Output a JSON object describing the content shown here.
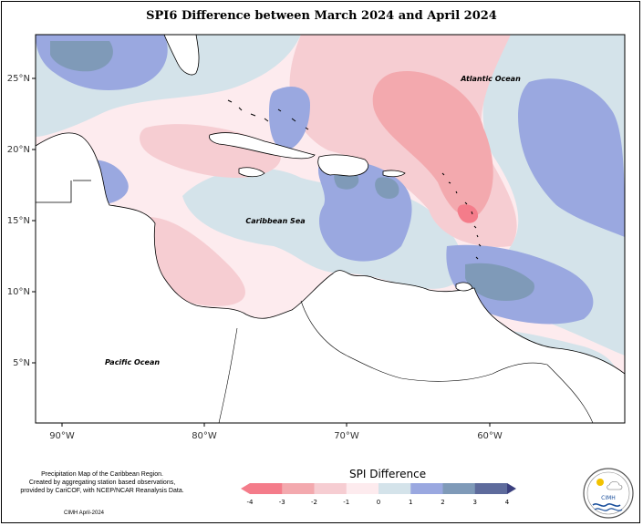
{
  "title": "SPI6 Difference between March 2024 and April 2024",
  "map": {
    "lat_ticks": [
      "25°N",
      "20°N",
      "15°N",
      "10°N",
      "5°N"
    ],
    "lon_ticks": [
      "90°W",
      "80°W",
      "70°W",
      "60°W"
    ],
    "labels": {
      "atlantic": "Atlantic Ocean",
      "caribbean": "Caribbean Sea",
      "pacific": "Pacific Ocean"
    }
  },
  "legend": {
    "title": "SPI Difference",
    "ticks": [
      "-4",
      "-3",
      "-2",
      "-1",
      "0",
      "1",
      "2",
      "3",
      "4"
    ],
    "colors": [
      "#f47c8a",
      "#f3a9ae",
      "#f6cdd2",
      "#fdebee",
      "#d4e3ea",
      "#9aa8e0",
      "#7f9ab8",
      "#5e6b9c",
      "#3a3f7e"
    ]
  },
  "credits": {
    "line1": "Precipitation Map of the Caribbean Region.",
    "line2": "Created by aggregating station based observations,",
    "line3": "provided by CariCOF, with NCEP/NCAR Reanalysis Data.",
    "date": "CIMH April-2024"
  },
  "logo": {
    "text": "CIMH"
  }
}
